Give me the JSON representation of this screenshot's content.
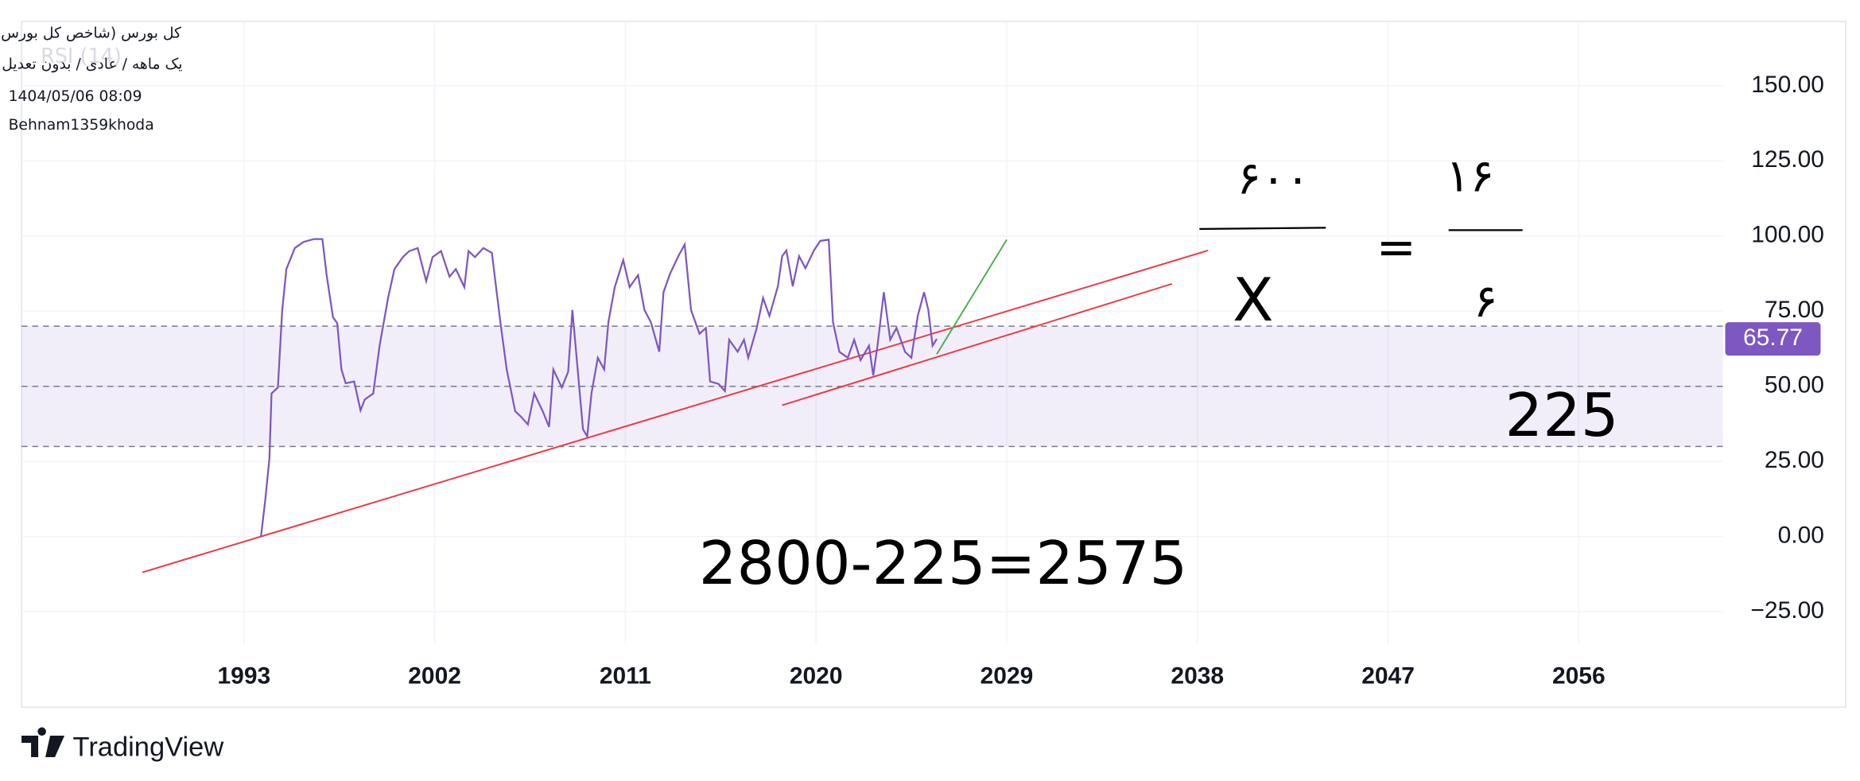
{
  "header": {
    "symbol": "کل بورس (شاخص کل بورس)",
    "settings": "یک ماهه / عادی / بدون تعدیل",
    "timestamp": "1404/05/06 08:09",
    "author": "Behnam1359khoda",
    "indicator": "RSI (14)"
  },
  "chart_data": {
    "type": "line",
    "x": [
      1993.8,
      1994.0,
      1994.2,
      1994.3,
      1994.6,
      1994.8,
      1995.0,
      1995.4,
      1995.8,
      1996.3,
      1996.7,
      1996.9,
      1997.2,
      1997.4,
      1997.6,
      1997.8,
      1998.2,
      1998.5,
      1998.7,
      1999.1,
      1999.4,
      1999.8,
      2000.1,
      2000.5,
      2000.8,
      2001.2,
      2001.6,
      2001.9,
      2002.3,
      2002.7,
      2003.0,
      2003.4,
      2003.6,
      2003.9,
      2004.3,
      2004.7,
      2005.1,
      2005.4,
      2005.8,
      2006.1,
      2006.4,
      2006.7,
      2007.1,
      2007.4,
      2007.6,
      2008.0,
      2008.3,
      2008.5,
      2008.8,
      2009.0,
      2009.2,
      2009.4,
      2009.7,
      2010.0,
      2010.2,
      2010.5,
      2010.9,
      2011.2,
      2011.6,
      2011.9,
      2012.2,
      2012.6,
      2012.8,
      2013.1,
      2013.5,
      2013.8,
      2014.1,
      2014.5,
      2014.8,
      2015.0,
      2015.4,
      2015.7,
      2015.9,
      2016.3,
      2016.6,
      2016.8,
      2017.2,
      2017.5,
      2017.8,
      2018.2,
      2018.4,
      2018.6,
      2018.9,
      2019.2,
      2019.5,
      2019.9,
      2020.2,
      2020.6,
      2020.8,
      2021.1,
      2021.5,
      2021.8,
      2022.1,
      2022.5,
      2022.7,
      2022.9,
      2023.2,
      2023.5,
      2023.8,
      2024.2,
      2024.5,
      2024.8,
      2025.1,
      2025.3,
      2025.5,
      2025.7
    ],
    "series": [
      {
        "name": "RSI (14)",
        "color": "#7e57c2",
        "values": [
          0,
          11.9,
          26,
          47.6,
          49.6,
          75,
          89,
          96,
          98,
          99,
          99,
          87,
          73,
          71,
          55.6,
          51,
          51.6,
          42,
          45.6,
          47.6,
          63.5,
          79.4,
          89,
          93,
          95,
          96,
          85,
          93,
          95,
          86.5,
          89,
          83,
          95,
          93,
          96,
          94.4,
          71.4,
          55.6,
          41.7,
          39.7,
          37.3,
          47.6,
          41.7,
          36.5,
          55.6,
          49.6,
          54.8,
          75.4,
          51.6,
          35.7,
          33.3,
          47.6,
          59.5,
          55.6,
          71.4,
          83,
          92,
          83,
          87,
          75.4,
          71.4,
          61.5,
          81.3,
          87.3,
          93.3,
          97.2,
          75.4,
          67.5,
          69.4,
          51.6,
          50.8,
          48.4,
          65.5,
          61.5,
          65.5,
          59.5,
          69.4,
          79.4,
          73.4,
          83.3,
          93.3,
          95.2,
          83.3,
          93.3,
          89.3,
          95.2,
          98.4,
          98.8,
          71.4,
          61.5,
          59.5,
          65.5,
          58.7,
          63.5,
          53.6,
          63.5,
          81.3,
          65.5,
          69.4,
          61.5,
          59.5,
          73.4,
          81.3,
          75.4,
          63.5,
          65.77
        ]
      }
    ],
    "last_value_label": 65.77,
    "band_levels": [
      70,
      50,
      30
    ],
    "band_fill": "rgba(126,87,194,0.1)",
    "trendlines": [
      {
        "color": "#f23645",
        "x": [
          1988.2,
          2038.5
        ],
        "y": [
          -11.9,
          95.2
        ]
      },
      {
        "color": "#f23645",
        "x": [
          2018.4,
          2036.8
        ],
        "y": [
          43.7,
          84.1
        ]
      },
      {
        "color": "#4caf50",
        "x": [
          2025.7,
          2029.0
        ],
        "y": [
          60.7,
          98.8
        ]
      }
    ],
    "xlim": [
      1982.5,
      2062.8
    ],
    "ylim": [
      -35.7,
      171.4
    ],
    "xticks": [
      1993,
      2002,
      2011,
      2020,
      2029,
      2038,
      2047,
      2056
    ],
    "yticks": [
      {
        "value": 150,
        "label": "150.00"
      },
      {
        "value": 125,
        "label": "125.00"
      },
      {
        "value": 100,
        "label": "100.00"
      },
      {
        "value": 75,
        "label": "75.00"
      },
      {
        "value": 50,
        "label": "50.00"
      },
      {
        "value": 25,
        "label": "25.00"
      },
      {
        "value": 0,
        "label": "0.00"
      },
      {
        "value": -25,
        "label": "−25.00"
      }
    ],
    "grid": true,
    "annotations": {
      "numerator_left": "۶۰۰",
      "denominator_left": "X",
      "equals": "=",
      "numerator_right": "۱۶",
      "denominator_right": "۶",
      "result": "225",
      "equation": "2800-225=2575"
    }
  },
  "footer": {
    "brand": "TradingView"
  }
}
